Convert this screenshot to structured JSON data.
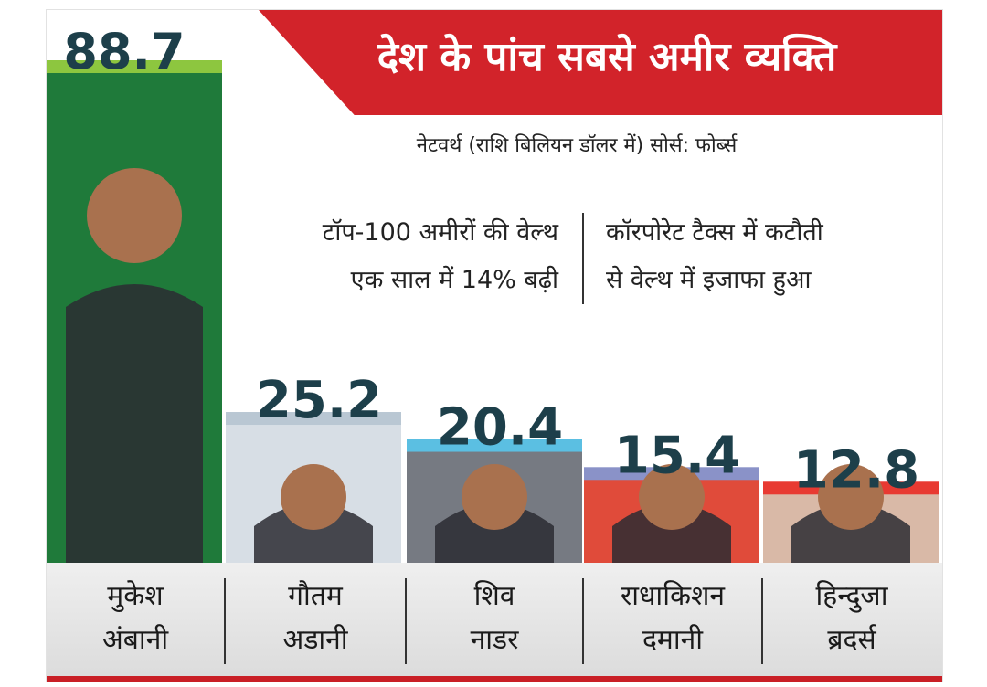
{
  "title": "देश के पांच सबसे अमीर व्यक्ति",
  "subtitle": "नेटवर्थ (राशि बिलियन डॉलर में)   सोर्स: फोर्ब्स",
  "notes": {
    "left_line1": "टॉप-100 अमीरों की वेल्थ",
    "left_line2": "एक साल में 14% बढ़ी",
    "right_line1": "कॉरपोरेट टैक्स में कटौती",
    "right_line2": "से वेल्थ में इजाफा हुआ"
  },
  "names": [
    {
      "line1": "मुकेश",
      "line2": "अंबानी"
    },
    {
      "line1": "गौतम",
      "line2": "अडानी"
    },
    {
      "line1": "शिव",
      "line2": "नाडर"
    },
    {
      "line1": "राधाकिशन",
      "line2": "दमानी"
    },
    {
      "line1": "हिन्दुजा",
      "line2": "ब्रदर्स"
    }
  ],
  "chart_data": {
    "type": "bar",
    "categories": [
      "मुकेश अंबानी",
      "गौतम अडानी",
      "शिव नाडर",
      "राधाकिशन दमानी",
      "हिन्दुजा ब्रदर्स"
    ],
    "values": [
      88.7,
      25.2,
      20.4,
      15.4,
      12.8
    ],
    "value_labels": [
      "88.7",
      "25.2",
      "20.4",
      "15.4",
      "12.8"
    ],
    "title": "देश के पांच सबसे अमीर व्यक्ति",
    "colors": {
      "bar_tops": [
        "#8dc63f",
        "#b9c7d3",
        "#5bbfe2",
        "#8a92c8",
        "#e83a32"
      ],
      "bar_bodies": [
        "#1f7a3a",
        "#d7dee5",
        "#767a82",
        "#e04b3a",
        "#d9b9a7"
      ],
      "value_text": "#1d3f4a",
      "title_banner": "#d2232a",
      "accent_line": "#c91f26"
    },
    "ylim": [
      0,
      95
    ],
    "grid": false,
    "legend": "none"
  }
}
